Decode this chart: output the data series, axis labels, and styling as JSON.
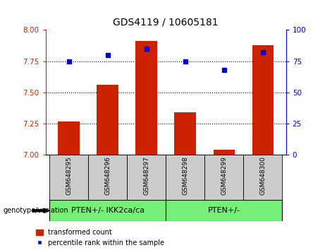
{
  "title": "GDS4119 / 10605181",
  "samples": [
    "GSM648295",
    "GSM648296",
    "GSM648297",
    "GSM648298",
    "GSM648299",
    "GSM648300"
  ],
  "bar_values": [
    7.27,
    7.56,
    7.91,
    7.34,
    7.04,
    7.88
  ],
  "percentile_values": [
    75,
    80,
    85,
    75,
    68,
    82
  ],
  "ylim_left": [
    7.0,
    8.0
  ],
  "ylim_right": [
    0,
    100
  ],
  "yticks_left": [
    7.0,
    7.25,
    7.5,
    7.75,
    8.0
  ],
  "yticks_right": [
    0,
    25,
    50,
    75,
    100
  ],
  "bar_color": "#cc2200",
  "dot_color": "#0000cc",
  "group1_label": "PTEN+/- IKK2ca/ca",
  "group2_label": "PTEN+/-",
  "group_bg_color": "#77ee77",
  "sample_box_color": "#cccccc",
  "genotype_label": "genotype/variation",
  "legend_bar_label": "transformed count",
  "legend_dot_label": "percentile rank within the sample",
  "title_fontsize": 10,
  "axis_color_left": "#cc2200",
  "axis_color_right": "#0000cc",
  "ytick_fontsize": 7.5,
  "sample_fontsize": 6.5,
  "group_fontsize": 8,
  "legend_fontsize": 7
}
